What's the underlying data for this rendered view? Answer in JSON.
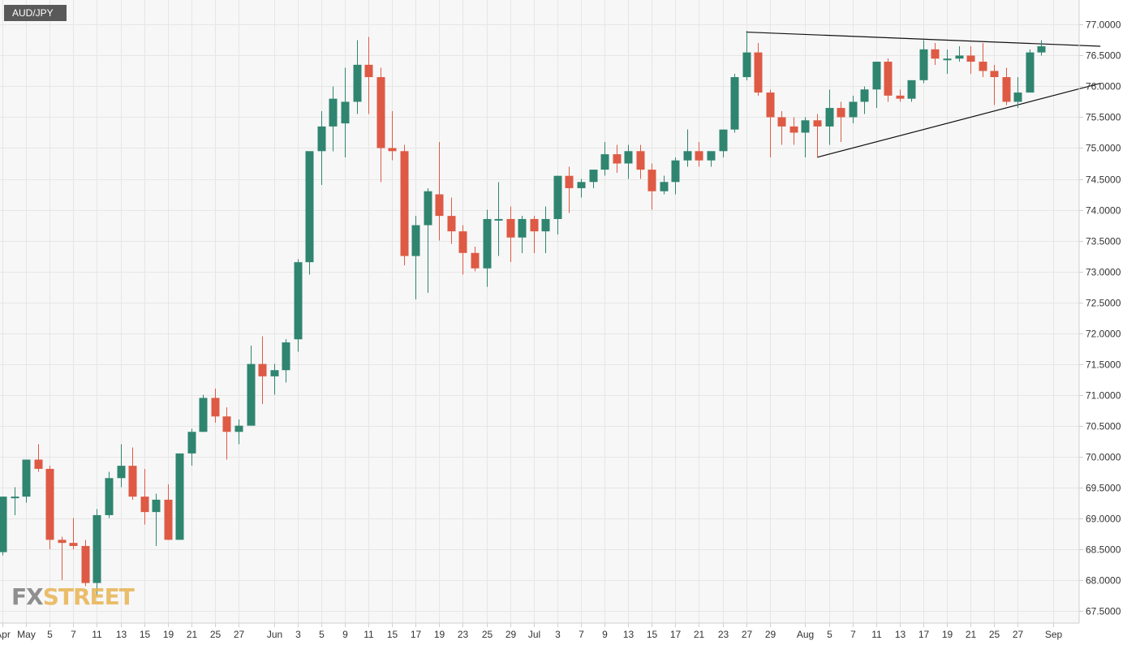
{
  "symbol": "AUD/JPY",
  "brand": {
    "part1": "FX",
    "part2": "STREET"
  },
  "colors": {
    "up": "#2f8570",
    "down": "#de5a44",
    "grid": "#e6e6e6",
    "plot_bg": "#f7f7f7",
    "trendline": "#111111"
  },
  "chart_data": {
    "type": "candlestick",
    "title": "AUD/JPY",
    "ylim": [
      67.3,
      77.4
    ],
    "y_ticks": [
      "67.5000",
      "68.0000",
      "68.5000",
      "69.0000",
      "69.5000",
      "70.0000",
      "70.5000",
      "71.0000",
      "71.5000",
      "72.0000",
      "72.5000",
      "73.0000",
      "73.5000",
      "74.0000",
      "74.5000",
      "75.0000",
      "75.5000",
      "76.0000",
      "76.5000",
      "77.0000"
    ],
    "x_ticks": [
      {
        "label": "Apr",
        "day": 0
      },
      {
        "label": "May",
        "day": 2
      },
      {
        "label": "5",
        "day": 4
      },
      {
        "label": "7",
        "day": 6
      },
      {
        "label": "11",
        "day": 8
      },
      {
        "label": "13",
        "day": 10
      },
      {
        "label": "15",
        "day": 12
      },
      {
        "label": "19",
        "day": 14
      },
      {
        "label": "21",
        "day": 16
      },
      {
        "label": "25",
        "day": 18
      },
      {
        "label": "27",
        "day": 20
      },
      {
        "label": "Jun",
        "day": 23
      },
      {
        "label": "3",
        "day": 25
      },
      {
        "label": "5",
        "day": 27
      },
      {
        "label": "9",
        "day": 29
      },
      {
        "label": "11",
        "day": 31
      },
      {
        "label": "15",
        "day": 33
      },
      {
        "label": "17",
        "day": 35
      },
      {
        "label": "19",
        "day": 37
      },
      {
        "label": "23",
        "day": 39
      },
      {
        "label": "25",
        "day": 41
      },
      {
        "label": "29",
        "day": 43
      },
      {
        "label": "Jul",
        "day": 45
      },
      {
        "label": "3",
        "day": 47
      },
      {
        "label": "7",
        "day": 49
      },
      {
        "label": "9",
        "day": 51
      },
      {
        "label": "13",
        "day": 53
      },
      {
        "label": "15",
        "day": 55
      },
      {
        "label": "17",
        "day": 57
      },
      {
        "label": "21",
        "day": 59
      },
      {
        "label": "23",
        "day": 61
      },
      {
        "label": "27",
        "day": 63
      },
      {
        "label": "29",
        "day": 65
      },
      {
        "label": "Aug",
        "day": 68
      },
      {
        "label": "5",
        "day": 70
      },
      {
        "label": "7",
        "day": 72
      },
      {
        "label": "11",
        "day": 74
      },
      {
        "label": "13",
        "day": 76
      },
      {
        "label": "17",
        "day": 78
      },
      {
        "label": "19",
        "day": 80
      },
      {
        "label": "21",
        "day": 82
      },
      {
        "label": "25",
        "day": 84
      },
      {
        "label": "27",
        "day": 86
      },
      {
        "label": "Sep",
        "day": 89
      }
    ],
    "candles": [
      [
        68.45,
        69.35,
        68.4,
        69.35
      ],
      [
        69.35,
        69.5,
        69.05,
        69.35
      ],
      [
        69.35,
        69.95,
        69.25,
        69.95
      ],
      [
        69.95,
        70.2,
        69.75,
        69.8
      ],
      [
        69.8,
        69.85,
        68.5,
        68.65
      ],
      [
        68.65,
        68.7,
        68.0,
        68.6
      ],
      [
        68.6,
        69.0,
        68.5,
        68.55
      ],
      [
        68.55,
        68.65,
        67.9,
        67.95
      ],
      [
        67.95,
        69.15,
        67.75,
        69.05
      ],
      [
        69.05,
        69.75,
        69.0,
        69.65
      ],
      [
        69.65,
        70.2,
        69.5,
        69.85
      ],
      [
        69.85,
        70.15,
        69.3,
        69.35
      ],
      [
        69.35,
        69.8,
        68.9,
        69.1
      ],
      [
        69.1,
        69.4,
        68.55,
        69.3
      ],
      [
        69.3,
        69.55,
        68.65,
        68.65
      ],
      [
        68.65,
        70.05,
        68.65,
        70.05
      ],
      [
        70.05,
        70.45,
        69.85,
        70.4
      ],
      [
        70.4,
        71.0,
        70.4,
        70.95
      ],
      [
        70.95,
        71.1,
        70.55,
        70.65
      ],
      [
        70.65,
        70.8,
        69.95,
        70.4
      ],
      [
        70.4,
        70.6,
        70.2,
        70.5
      ],
      [
        70.5,
        71.8,
        70.5,
        71.5
      ],
      [
        71.5,
        71.95,
        70.85,
        71.3
      ],
      [
        71.3,
        71.5,
        71.0,
        71.4
      ],
      [
        71.4,
        71.9,
        71.2,
        71.85
      ],
      [
        71.9,
        73.2,
        71.7,
        73.15
      ],
      [
        73.15,
        74.95,
        72.95,
        74.95
      ],
      [
        74.95,
        75.6,
        74.4,
        75.35
      ],
      [
        75.35,
        76.0,
        74.95,
        75.8
      ],
      [
        75.4,
        76.3,
        74.85,
        75.75
      ],
      [
        75.75,
        76.75,
        75.55,
        76.35
      ],
      [
        76.35,
        76.8,
        75.55,
        76.15
      ],
      [
        76.15,
        76.3,
        74.45,
        75.0
      ],
      [
        75.0,
        75.6,
        74.8,
        74.95
      ],
      [
        74.95,
        75.05,
        73.1,
        73.25
      ],
      [
        73.25,
        73.9,
        72.55,
        73.75
      ],
      [
        73.75,
        74.35,
        72.65,
        74.3
      ],
      [
        74.25,
        75.1,
        73.5,
        73.9
      ],
      [
        73.9,
        74.2,
        73.45,
        73.65
      ],
      [
        73.65,
        73.75,
        72.95,
        73.3
      ],
      [
        73.3,
        73.4,
        73.0,
        73.05
      ],
      [
        73.05,
        74.0,
        72.75,
        73.85
      ],
      [
        73.85,
        74.45,
        73.25,
        73.85
      ],
      [
        73.85,
        74.05,
        73.15,
        73.55
      ],
      [
        73.55,
        73.9,
        73.3,
        73.85
      ],
      [
        73.85,
        73.9,
        73.3,
        73.65
      ],
      [
        73.65,
        74.05,
        73.3,
        73.85
      ],
      [
        73.85,
        74.55,
        73.6,
        74.55
      ],
      [
        74.55,
        74.7,
        73.95,
        74.35
      ],
      [
        74.35,
        74.5,
        74.2,
        74.45
      ],
      [
        74.45,
        74.65,
        74.35,
        74.65
      ],
      [
        74.65,
        75.1,
        74.55,
        74.9
      ],
      [
        74.9,
        75.05,
        74.6,
        74.75
      ],
      [
        74.75,
        75.05,
        74.5,
        74.95
      ],
      [
        74.95,
        75.05,
        74.5,
        74.65
      ],
      [
        74.65,
        74.75,
        74.0,
        74.3
      ],
      [
        74.3,
        74.55,
        74.25,
        74.45
      ],
      [
        74.45,
        74.85,
        74.25,
        74.8
      ],
      [
        74.8,
        75.3,
        74.7,
        74.95
      ],
      [
        74.95,
        75.1,
        74.7,
        74.8
      ],
      [
        74.8,
        74.95,
        74.7,
        74.95
      ],
      [
        74.95,
        75.3,
        74.85,
        75.3
      ],
      [
        75.3,
        76.2,
        75.25,
        76.15
      ],
      [
        76.15,
        76.9,
        76.1,
        76.55
      ],
      [
        76.55,
        76.7,
        75.85,
        75.9
      ],
      [
        75.9,
        75.95,
        74.85,
        75.5
      ],
      [
        75.5,
        75.6,
        75.05,
        75.35
      ],
      [
        75.35,
        75.5,
        75.05,
        75.25
      ],
      [
        75.25,
        75.5,
        74.85,
        75.45
      ],
      [
        75.45,
        75.55,
        74.85,
        75.35
      ],
      [
        75.35,
        75.95,
        75.05,
        75.65
      ],
      [
        75.65,
        75.75,
        75.1,
        75.5
      ],
      [
        75.5,
        75.85,
        75.4,
        75.75
      ],
      [
        75.75,
        76.0,
        75.55,
        75.95
      ],
      [
        75.95,
        76.4,
        75.65,
        76.4
      ],
      [
        76.4,
        76.45,
        75.75,
        75.85
      ],
      [
        75.85,
        75.95,
        75.75,
        75.8
      ],
      [
        75.8,
        76.1,
        75.75,
        76.1
      ],
      [
        76.1,
        76.75,
        76.05,
        76.6
      ],
      [
        76.6,
        76.7,
        76.35,
        76.45
      ],
      [
        76.45,
        76.6,
        76.2,
        76.45
      ],
      [
        76.45,
        76.65,
        76.4,
        76.5
      ],
      [
        76.5,
        76.65,
        76.2,
        76.4
      ],
      [
        76.4,
        76.7,
        76.15,
        76.25
      ],
      [
        76.25,
        76.35,
        75.7,
        76.15
      ],
      [
        76.15,
        76.3,
        75.7,
        75.75
      ],
      [
        75.75,
        76.15,
        75.65,
        75.9
      ],
      [
        75.9,
        76.6,
        75.9,
        76.55
      ],
      [
        76.55,
        76.75,
        76.5,
        76.65
      ]
    ],
    "trendlines": [
      {
        "name": "upper",
        "points": [
          [
            63,
            76.88
          ],
          [
            93,
            76.65
          ]
        ]
      },
      {
        "name": "lower",
        "points": [
          [
            69,
            74.85
          ],
          [
            93,
            76.05
          ]
        ]
      }
    ]
  }
}
